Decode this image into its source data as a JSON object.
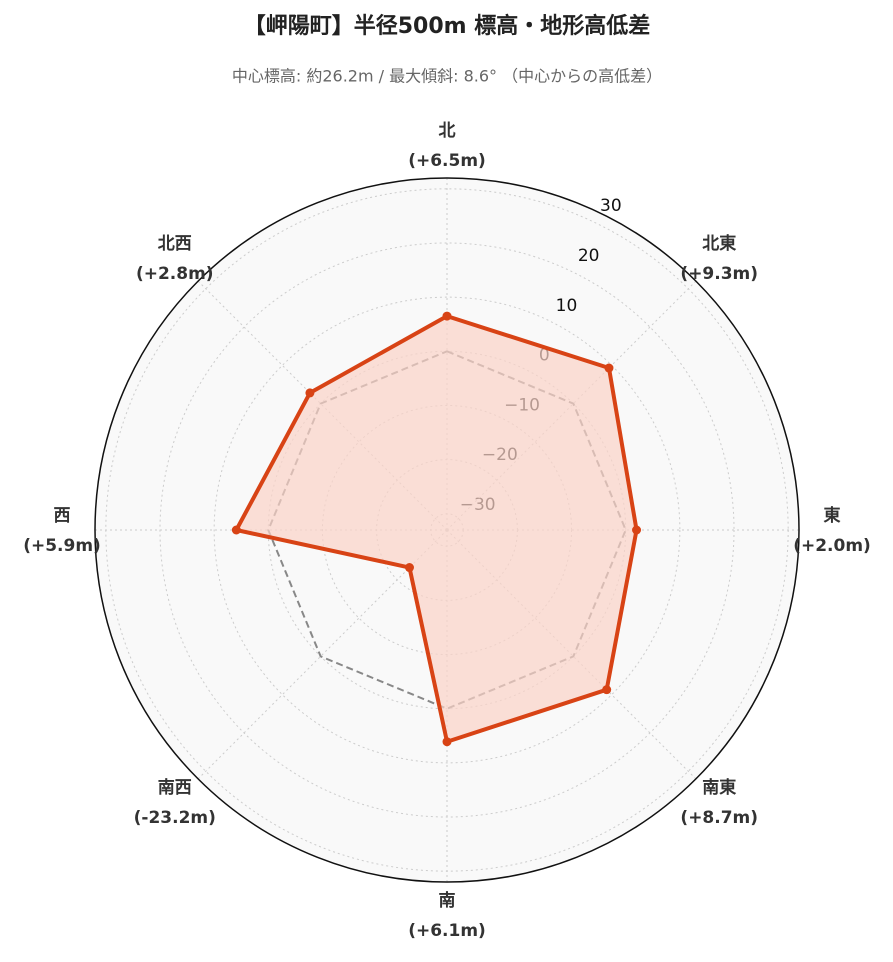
{
  "chart_data": {
    "type": "radar",
    "title": "【岬陽町】半径500m 標高・地形高低差",
    "subtitle": "中心標高: 約26.2m / 最大傾斜: 8.6° （中心からの高低差）",
    "categories": [
      "北",
      "北東",
      "東",
      "南東",
      "南",
      "南西",
      "西",
      "北西"
    ],
    "values": [
      6.5,
      9.3,
      2.0,
      8.7,
      6.1,
      -23.2,
      5.9,
      2.8
    ],
    "value_labels": [
      "(+6.5m)",
      "(+9.3m)",
      "(+2.0m)",
      "(+8.7m)",
      "(+6.1m)",
      "(-23.2m)",
      "(+5.9m)",
      "(+2.8m)"
    ],
    "color": "#d84315",
    "fill": "#fbd3c8",
    "reference": 0,
    "ylim": [
      -33,
      32
    ],
    "yticks": [
      {
        "value": -30,
        "label": "−30"
      },
      {
        "value": -20,
        "label": "−20"
      },
      {
        "value": -10,
        "label": "−10"
      },
      0,
      10,
      20,
      30
    ],
    "grid": true
  }
}
